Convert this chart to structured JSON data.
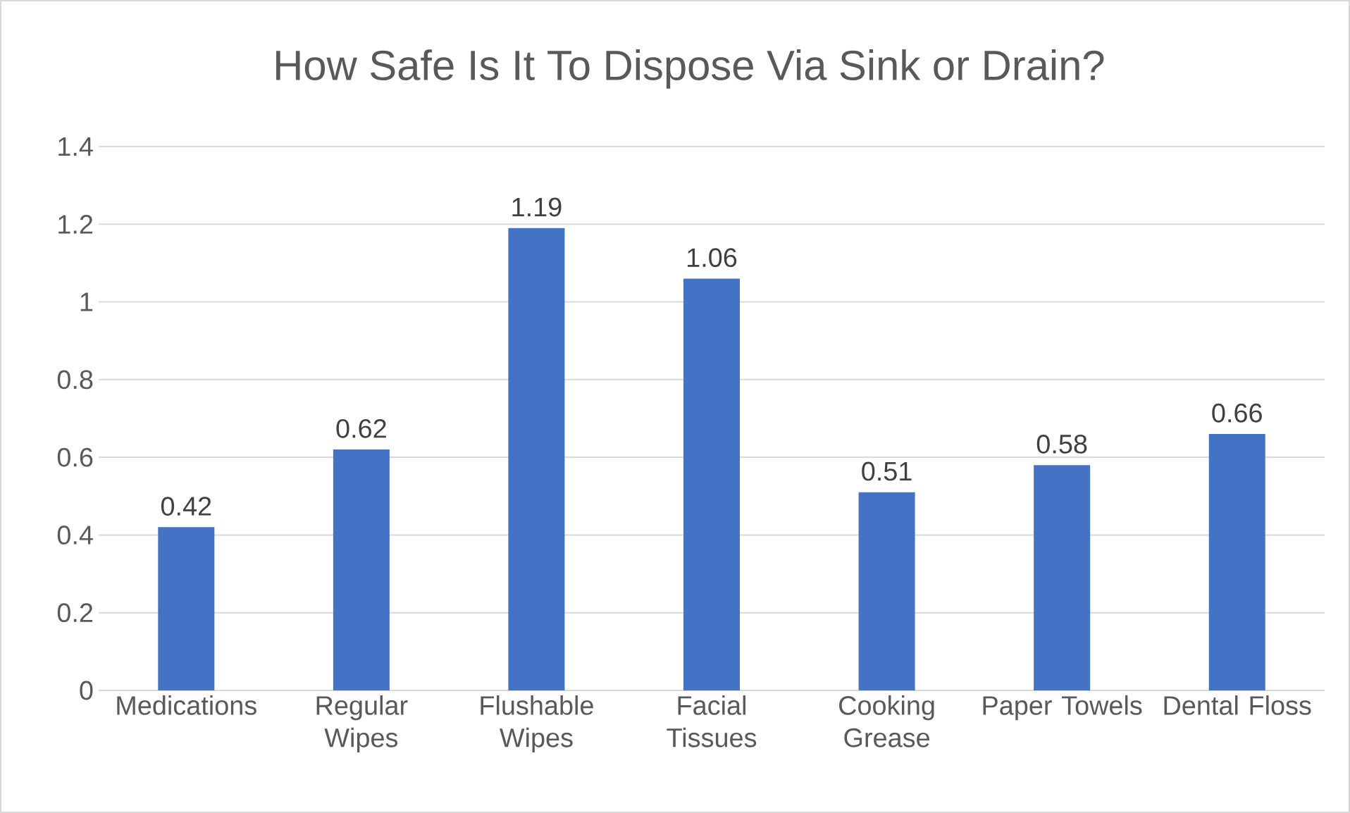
{
  "chart_data": {
    "type": "bar",
    "title": "How Safe Is It To Dispose Via Sink or Drain?",
    "categories": [
      "Medications",
      "Regular Wipes",
      "Flushable Wipes",
      "Facial Tissues",
      "Cooking Grease",
      "Paper Towels",
      "Dental Floss"
    ],
    "values": [
      0.42,
      0.62,
      1.19,
      1.06,
      0.51,
      0.58,
      0.66
    ],
    "color": "#4472c4",
    "ylim": [
      0,
      1.4
    ],
    "yticks": [
      0,
      0.2,
      0.4,
      0.6,
      0.8,
      1,
      1.2,
      1.4
    ],
    "grid": "y",
    "data_labels": true
  }
}
